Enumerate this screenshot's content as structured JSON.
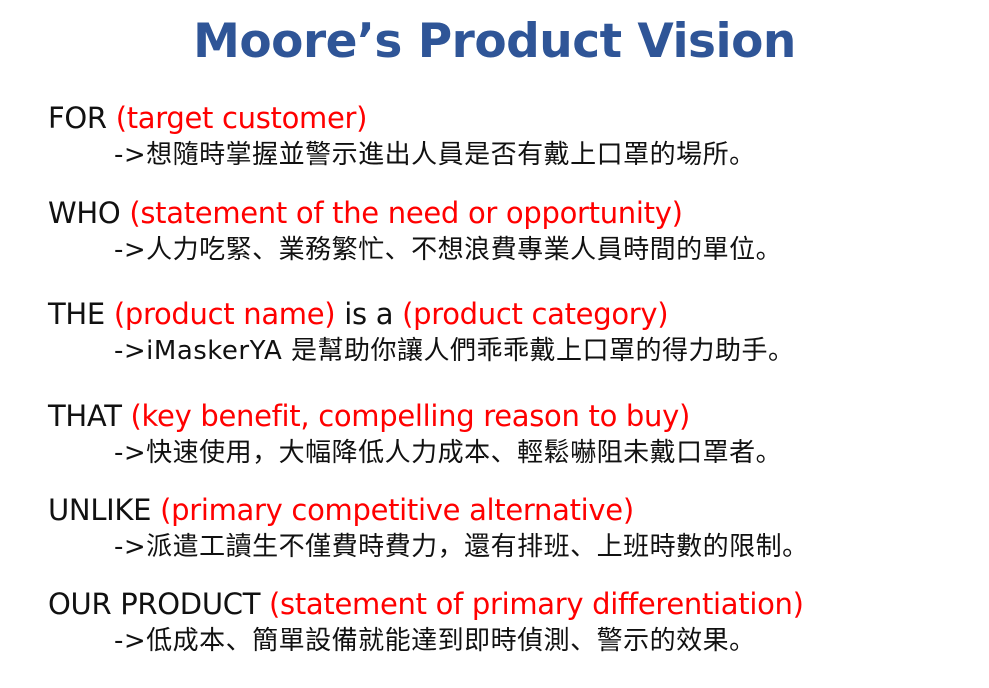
{
  "title": "Moore’s Product Vision",
  "colors": {
    "title": "#2f5597",
    "keyword": "#111111",
    "hint": "#ff0000"
  },
  "sections": [
    {
      "keyword": "FOR",
      "hint": "(target customer)",
      "detail": "->想隨時掌握並警示進出人員是否有戴上口罩的場所。"
    },
    {
      "keyword": "WHO",
      "hint": "(statement of the need or opportunity)",
      "detail": "->人力吃緊、業務繁忙、不想浪費專業人員時間的單位。"
    },
    {
      "keyword": "THE",
      "hint": "(product name)",
      "keyword2": "is a",
      "hint2": "(product category)",
      "detail": "->iMaskerYA 是幫助你讓人們乖乖戴上口罩的得力助手。"
    },
    {
      "keyword": "THAT",
      "hint": "(key benefit, compelling reason to buy)",
      "detail": "->快速使用，大幅降低人力成本、輕鬆嚇阻未戴口罩者。"
    },
    {
      "keyword": "UNLIKE",
      "hint": "(primary competitive alternative)",
      "detail": "->派遣工讀生不僅費時費力，還有排班、上班時數的限制。"
    },
    {
      "keyword": "OUR PRODUCT",
      "hint": "(statement of primary differentiation)",
      "detail": "->低成本、簡單設備就能達到即時偵測、警示的效果。"
    }
  ]
}
